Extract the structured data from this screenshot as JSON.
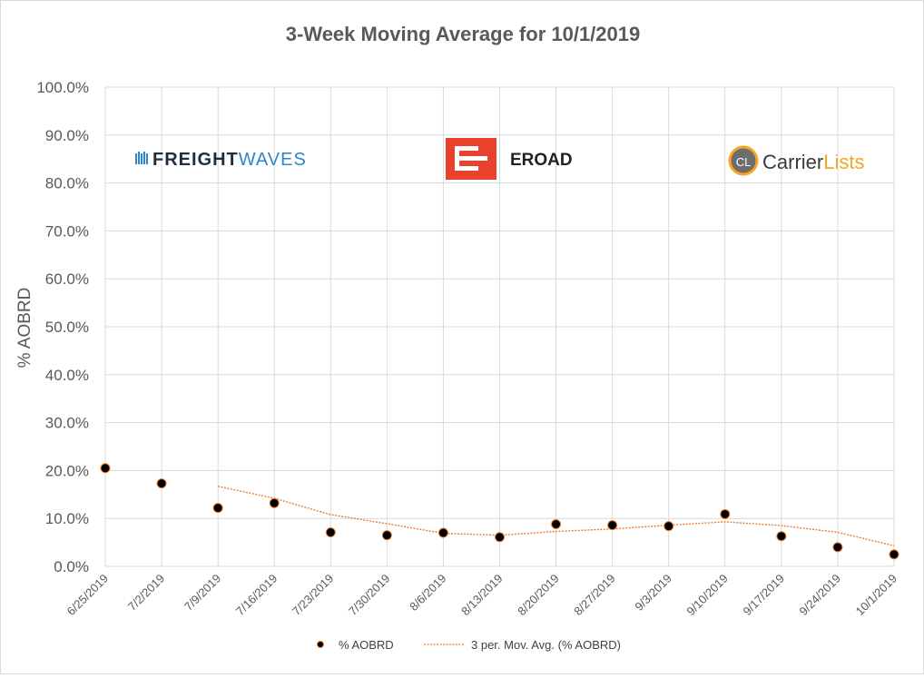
{
  "chart_data": {
    "type": "scatter",
    "title": "3-Week Moving Average for 10/1/2019",
    "xlabel": "",
    "ylabel": "% AOBRD",
    "categories": [
      "6/25/2019",
      "7/2/2019",
      "7/9/2019",
      "7/16/2019",
      "7/23/2019",
      "7/30/2019",
      "8/6/2019",
      "8/13/2019",
      "8/20/2019",
      "8/27/2019",
      "9/3/2019",
      "9/10/2019",
      "9/17/2019",
      "9/24/2019",
      "10/1/2019"
    ],
    "y_ticks": [
      "0.0%",
      "10.0%",
      "20.0%",
      "30.0%",
      "40.0%",
      "50.0%",
      "60.0%",
      "70.0%",
      "80.0%",
      "90.0%",
      "100.0%"
    ],
    "ylim": [
      0,
      100
    ],
    "grid": true,
    "legend_position": "bottom",
    "series": [
      {
        "name": "% AOBRD",
        "kind": "scatter",
        "values": [
          20.5,
          17.3,
          12.2,
          13.2,
          7.1,
          6.5,
          7.0,
          6.1,
          8.8,
          8.6,
          8.4,
          10.9,
          6.3,
          4.0,
          2.5
        ]
      },
      {
        "name": "3 per. Mov. Avg. (% AOBRD)",
        "kind": "trendline",
        "values": [
          null,
          null,
          16.7,
          14.2,
          10.8,
          8.9,
          6.9,
          6.5,
          7.3,
          7.8,
          8.6,
          9.3,
          8.5,
          7.1,
          4.3
        ]
      }
    ],
    "colors": {
      "marker_fill": "#000000",
      "marker_edge": "#ED7D31",
      "trendline": "#ED7D31",
      "grid": "#d9d9d9",
      "text": "#595959"
    }
  },
  "logos": {
    "freightwaves": {
      "part1": "FREIGHT",
      "part2": "WAVES",
      "color1": "#1f2d3d",
      "color2": "#2e86c8"
    },
    "eroad": {
      "name": "EROAD",
      "badge_color": "#e8412c"
    },
    "carrierlists": {
      "badge": "CL",
      "part1": "Carrier",
      "part2": "Lists",
      "color1": "#3a3a3a",
      "color2": "#f5a623"
    }
  }
}
